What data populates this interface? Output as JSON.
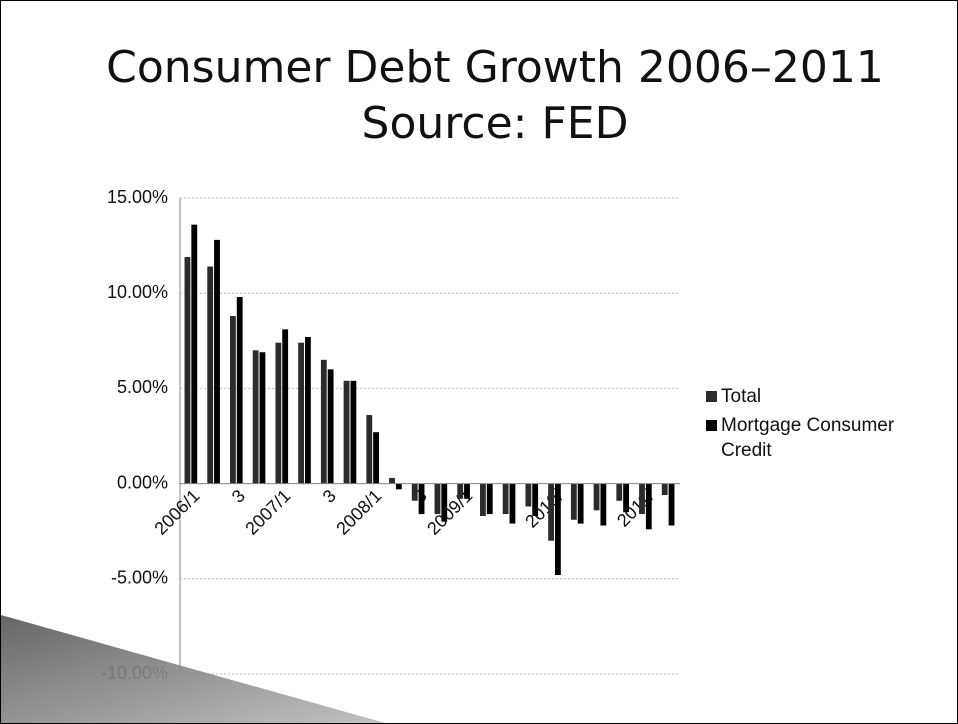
{
  "chart_data": {
    "type": "bar",
    "title": "Consumer Debt Growth 2006–2011 Source: FED",
    "categories": [
      "2006/1",
      null,
      "3",
      null,
      "2007/1",
      null,
      "3",
      null,
      "2008/1",
      null,
      "3",
      null,
      "2009/1",
      null,
      null,
      null,
      "2010/",
      null,
      null,
      null,
      "2011/",
      null
    ],
    "series": [
      {
        "name": "Total",
        "color": "#2b2b2b",
        "values": [
          11.9,
          11.4,
          8.8,
          7.0,
          7.4,
          7.4,
          6.5,
          5.4,
          3.6,
          0.3,
          -0.9,
          -1.6,
          -0.8,
          -1.7,
          -1.6,
          -1.2,
          -3.0,
          -1.9,
          -1.4,
          -0.9,
          -1.6,
          -0.6
        ]
      },
      {
        "name": "Mortgage Consumer Credit",
        "color": "#000000",
        "values": [
          13.6,
          12.8,
          9.8,
          6.9,
          8.1,
          7.7,
          6.0,
          5.4,
          2.7,
          -0.3,
          -1.6,
          -2.0,
          -0.8,
          -1.6,
          -2.1,
          -1.7,
          -4.8,
          -2.1,
          -2.2,
          -1.5,
          -2.4,
          -2.2
        ]
      }
    ],
    "ylim": [
      -10,
      15
    ],
    "yticks": [
      {
        "value": -10,
        "label": "-10.00%"
      },
      {
        "value": -5,
        "label": "-5.00%"
      },
      {
        "value": 0,
        "label": "0.00%"
      },
      {
        "value": 5,
        "label": "5.00%"
      },
      {
        "value": 10,
        "label": "10.00%"
      },
      {
        "value": 15,
        "label": "15.00%"
      }
    ],
    "grid": true
  }
}
